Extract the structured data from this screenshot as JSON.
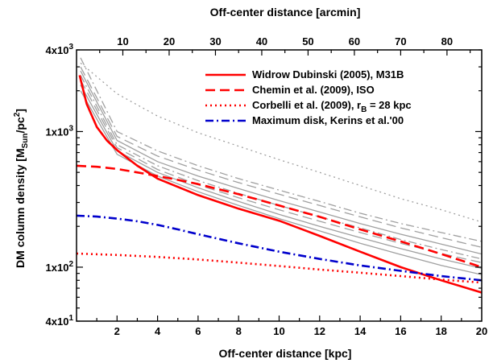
{
  "chart_data": {
    "type": "line",
    "xlabel": "Off-center distance [kpc]",
    "x2label": "Off-center distance [arcmin]",
    "xlim": [
      0,
      20
    ],
    "x2lim": [
      0,
      87.5
    ],
    "ylim": [
      40,
      4000
    ],
    "yscale": "log",
    "legend_position": "top-right",
    "xticks": [
      {
        "value": 2,
        "label": "2"
      },
      {
        "value": 4,
        "label": "4"
      },
      {
        "value": 6,
        "label": "6"
      },
      {
        "value": 8,
        "label": "8"
      },
      {
        "value": 10,
        "label": "10"
      },
      {
        "value": 12,
        "label": "12"
      },
      {
        "value": 14,
        "label": "14"
      },
      {
        "value": 16,
        "label": "16"
      },
      {
        "value": 18,
        "label": "18"
      },
      {
        "value": 20,
        "label": "20"
      }
    ],
    "x2ticks": [
      {
        "value": 10,
        "label": "10"
      },
      {
        "value": 20,
        "label": "20"
      },
      {
        "value": 30,
        "label": "30"
      },
      {
        "value": 40,
        "label": "40"
      },
      {
        "value": 50,
        "label": "50"
      },
      {
        "value": 60,
        "label": "60"
      },
      {
        "value": 70,
        "label": "70"
      },
      {
        "value": 80,
        "label": "80"
      }
    ],
    "yticks": [
      {
        "value": 4000,
        "mant": "4x10",
        "exp": "3"
      },
      {
        "value": 1000,
        "mant": "1x10",
        "exp": "3"
      },
      {
        "value": 100,
        "mant": "1x10",
        "exp": "2"
      },
      {
        "value": 40,
        "mant": "4x10",
        "exp": "1"
      }
    ],
    "series": [
      {
        "name": "Widrow  Dubinski (2005), M31B",
        "color": "#ff0000",
        "dash": "solid",
        "x": [
          0.15,
          0.5,
          1,
          1.5,
          2,
          3,
          4,
          6,
          8,
          10,
          12,
          14,
          16,
          18,
          20
        ],
        "y": [
          2600,
          1600,
          1080,
          860,
          730,
          560,
          450,
          340,
          270,
          220,
          170,
          130,
          100,
          80,
          65
        ]
      },
      {
        "name": "Chemin et al. (2009), ISO",
        "color": "#ff0000",
        "dash": "dash",
        "x": [
          0,
          1,
          2,
          3,
          4,
          5,
          6,
          8,
          10,
          12,
          14,
          16,
          18,
          20
        ],
        "y": [
          560,
          550,
          530,
          500,
          470,
          440,
          410,
          345,
          285,
          235,
          190,
          155,
          125,
          100
        ]
      },
      {
        "name": "Corbelli et al. (2009), r_B = 28 kpc",
        "color": "#ff0000",
        "dash": "dot",
        "x": [
          0,
          2,
          4,
          6,
          8,
          10,
          12,
          14,
          16,
          18,
          20
        ],
        "y": [
          126,
          123,
          119,
          114,
          108,
          102,
          96,
          91,
          86,
          81,
          77
        ]
      },
      {
        "name": "Maximum disk, Kerins et al.'00",
        "color": "#0000cc",
        "dash": "dashdot",
        "x": [
          0,
          1,
          2,
          3,
          4,
          5,
          6,
          8,
          10,
          12,
          14,
          16,
          18,
          20
        ],
        "y": [
          240,
          236,
          228,
          218,
          205,
          190,
          175,
          150,
          130,
          115,
          103,
          94,
          86,
          80
        ]
      }
    ],
    "background_series": [
      {
        "color": "#a0a0a0",
        "dash": "dot",
        "x": [
          0.2,
          2,
          4,
          6,
          8,
          10,
          12,
          14,
          16,
          18,
          20
        ],
        "y": [
          3200,
          1900,
          1300,
          980,
          780,
          620,
          500,
          400,
          320,
          265,
          215
        ]
      },
      {
        "color": "#a0a0a0",
        "dash": "dashdot",
        "x": [
          0.2,
          2,
          4,
          6,
          8,
          10,
          12,
          14,
          16,
          18,
          20
        ],
        "y": [
          3500,
          1000,
          720,
          560,
          450,
          370,
          305,
          250,
          210,
          180,
          155
        ]
      },
      {
        "color": "#a0a0a0",
        "dash": "dash",
        "x": [
          0.2,
          2,
          4,
          6,
          8,
          10,
          12,
          14,
          16,
          18,
          20
        ],
        "y": [
          3000,
          920,
          660,
          520,
          420,
          345,
          285,
          235,
          195,
          165,
          140
        ]
      },
      {
        "color": "#a0a0a0",
        "dash": "solid",
        "x": [
          0.2,
          2,
          4,
          6,
          8,
          10,
          12,
          14,
          16,
          18,
          20
        ],
        "y": [
          2800,
          860,
          600,
          470,
          380,
          310,
          255,
          210,
          175,
          148,
          125
        ]
      },
      {
        "color": "#a0a0a0",
        "dash": "dashdot",
        "x": [
          0.2,
          2,
          4,
          6,
          8,
          10,
          12,
          14,
          16,
          18,
          20
        ],
        "y": [
          2600,
          800,
          560,
          435,
          350,
          285,
          235,
          195,
          160,
          135,
          115
        ]
      },
      {
        "color": "#a0a0a0",
        "dash": "dash",
        "x": [
          0.2,
          2,
          4,
          6,
          8,
          10,
          12,
          14,
          16,
          18,
          20
        ],
        "y": [
          2400,
          760,
          525,
          405,
          325,
          265,
          218,
          180,
          150,
          126,
          108
        ]
      },
      {
        "color": "#a0a0a0",
        "dash": "solid",
        "x": [
          0.2,
          2,
          4,
          6,
          8,
          10,
          12,
          14,
          16,
          18,
          20
        ],
        "y": [
          2200,
          720,
          500,
          385,
          305,
          245,
          200,
          165,
          137,
          115,
          98
        ]
      },
      {
        "color": "#a0a0a0",
        "dash": "solid",
        "x": [
          0.2,
          2,
          4,
          6,
          8,
          10,
          12,
          14,
          16,
          18,
          20
        ],
        "y": [
          2000,
          680,
          470,
          360,
          285,
          228,
          185,
          150,
          124,
          103,
          88
        ]
      }
    ]
  }
}
